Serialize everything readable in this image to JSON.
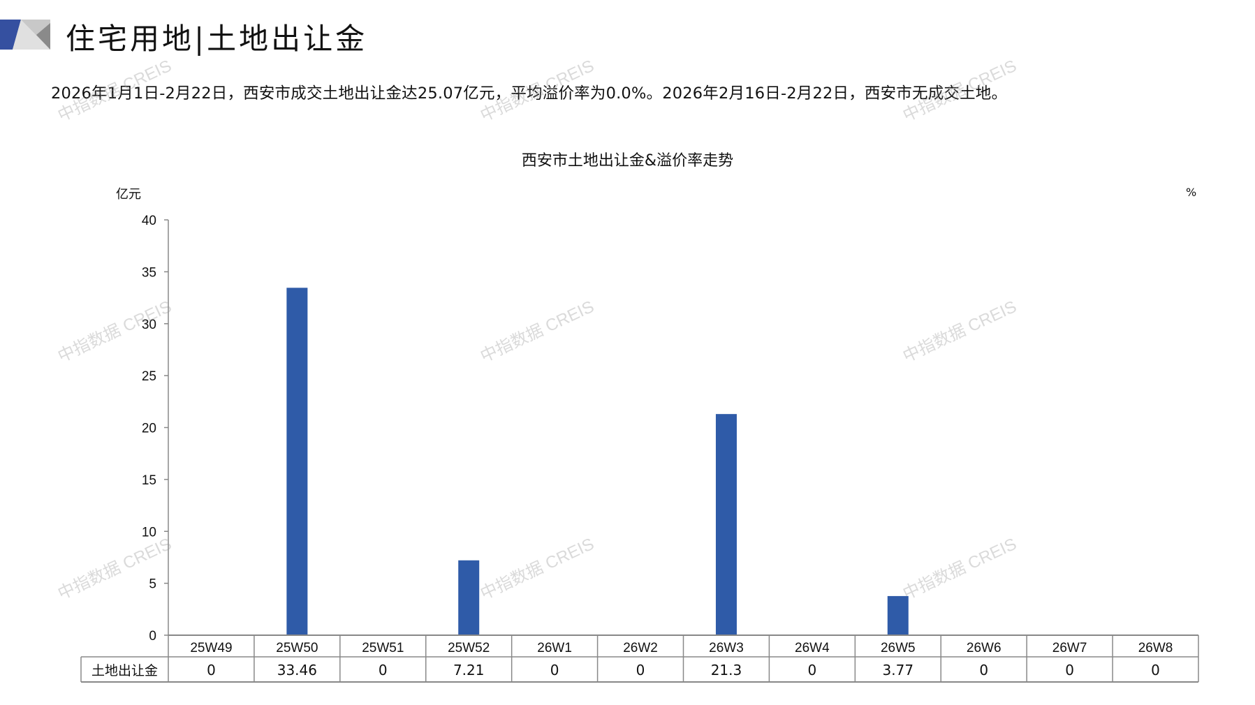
{
  "header": {
    "title": "住宅用地|土地出让金",
    "summary": "2026年1月1日-2月22日，西安市成交土地出让金达25.07亿元，平均溢价率为0.0%。2026年2月16日-2月22日，西安市无成交土地。"
  },
  "watermark": "中指数据 CREIS",
  "colors": {
    "bar": "#2f5ba8",
    "grid": "#888888"
  },
  "chart_data": {
    "type": "bar",
    "title": "西安市土地出让金&溢价率走势",
    "ylabel": "亿元",
    "y2label": "%",
    "ylim": [
      0,
      40
    ],
    "yticks": [
      0,
      5,
      10,
      15,
      20,
      25,
      30,
      35,
      40
    ],
    "categories": [
      "25W49",
      "25W50",
      "25W51",
      "25W52",
      "26W1",
      "26W2",
      "26W3",
      "26W4",
      "26W5",
      "26W6",
      "26W7",
      "26W8"
    ],
    "series": [
      {
        "name": "土地出让金",
        "values": [
          0,
          33.46,
          0,
          7.21,
          0,
          0,
          21.3,
          0,
          3.77,
          0,
          0,
          0
        ],
        "labels": [
          "0",
          "33.46",
          "0",
          "7.21",
          "0",
          "0",
          "21.3",
          "0",
          "3.77",
          "0",
          "0",
          "0"
        ]
      }
    ],
    "data_table": true
  }
}
